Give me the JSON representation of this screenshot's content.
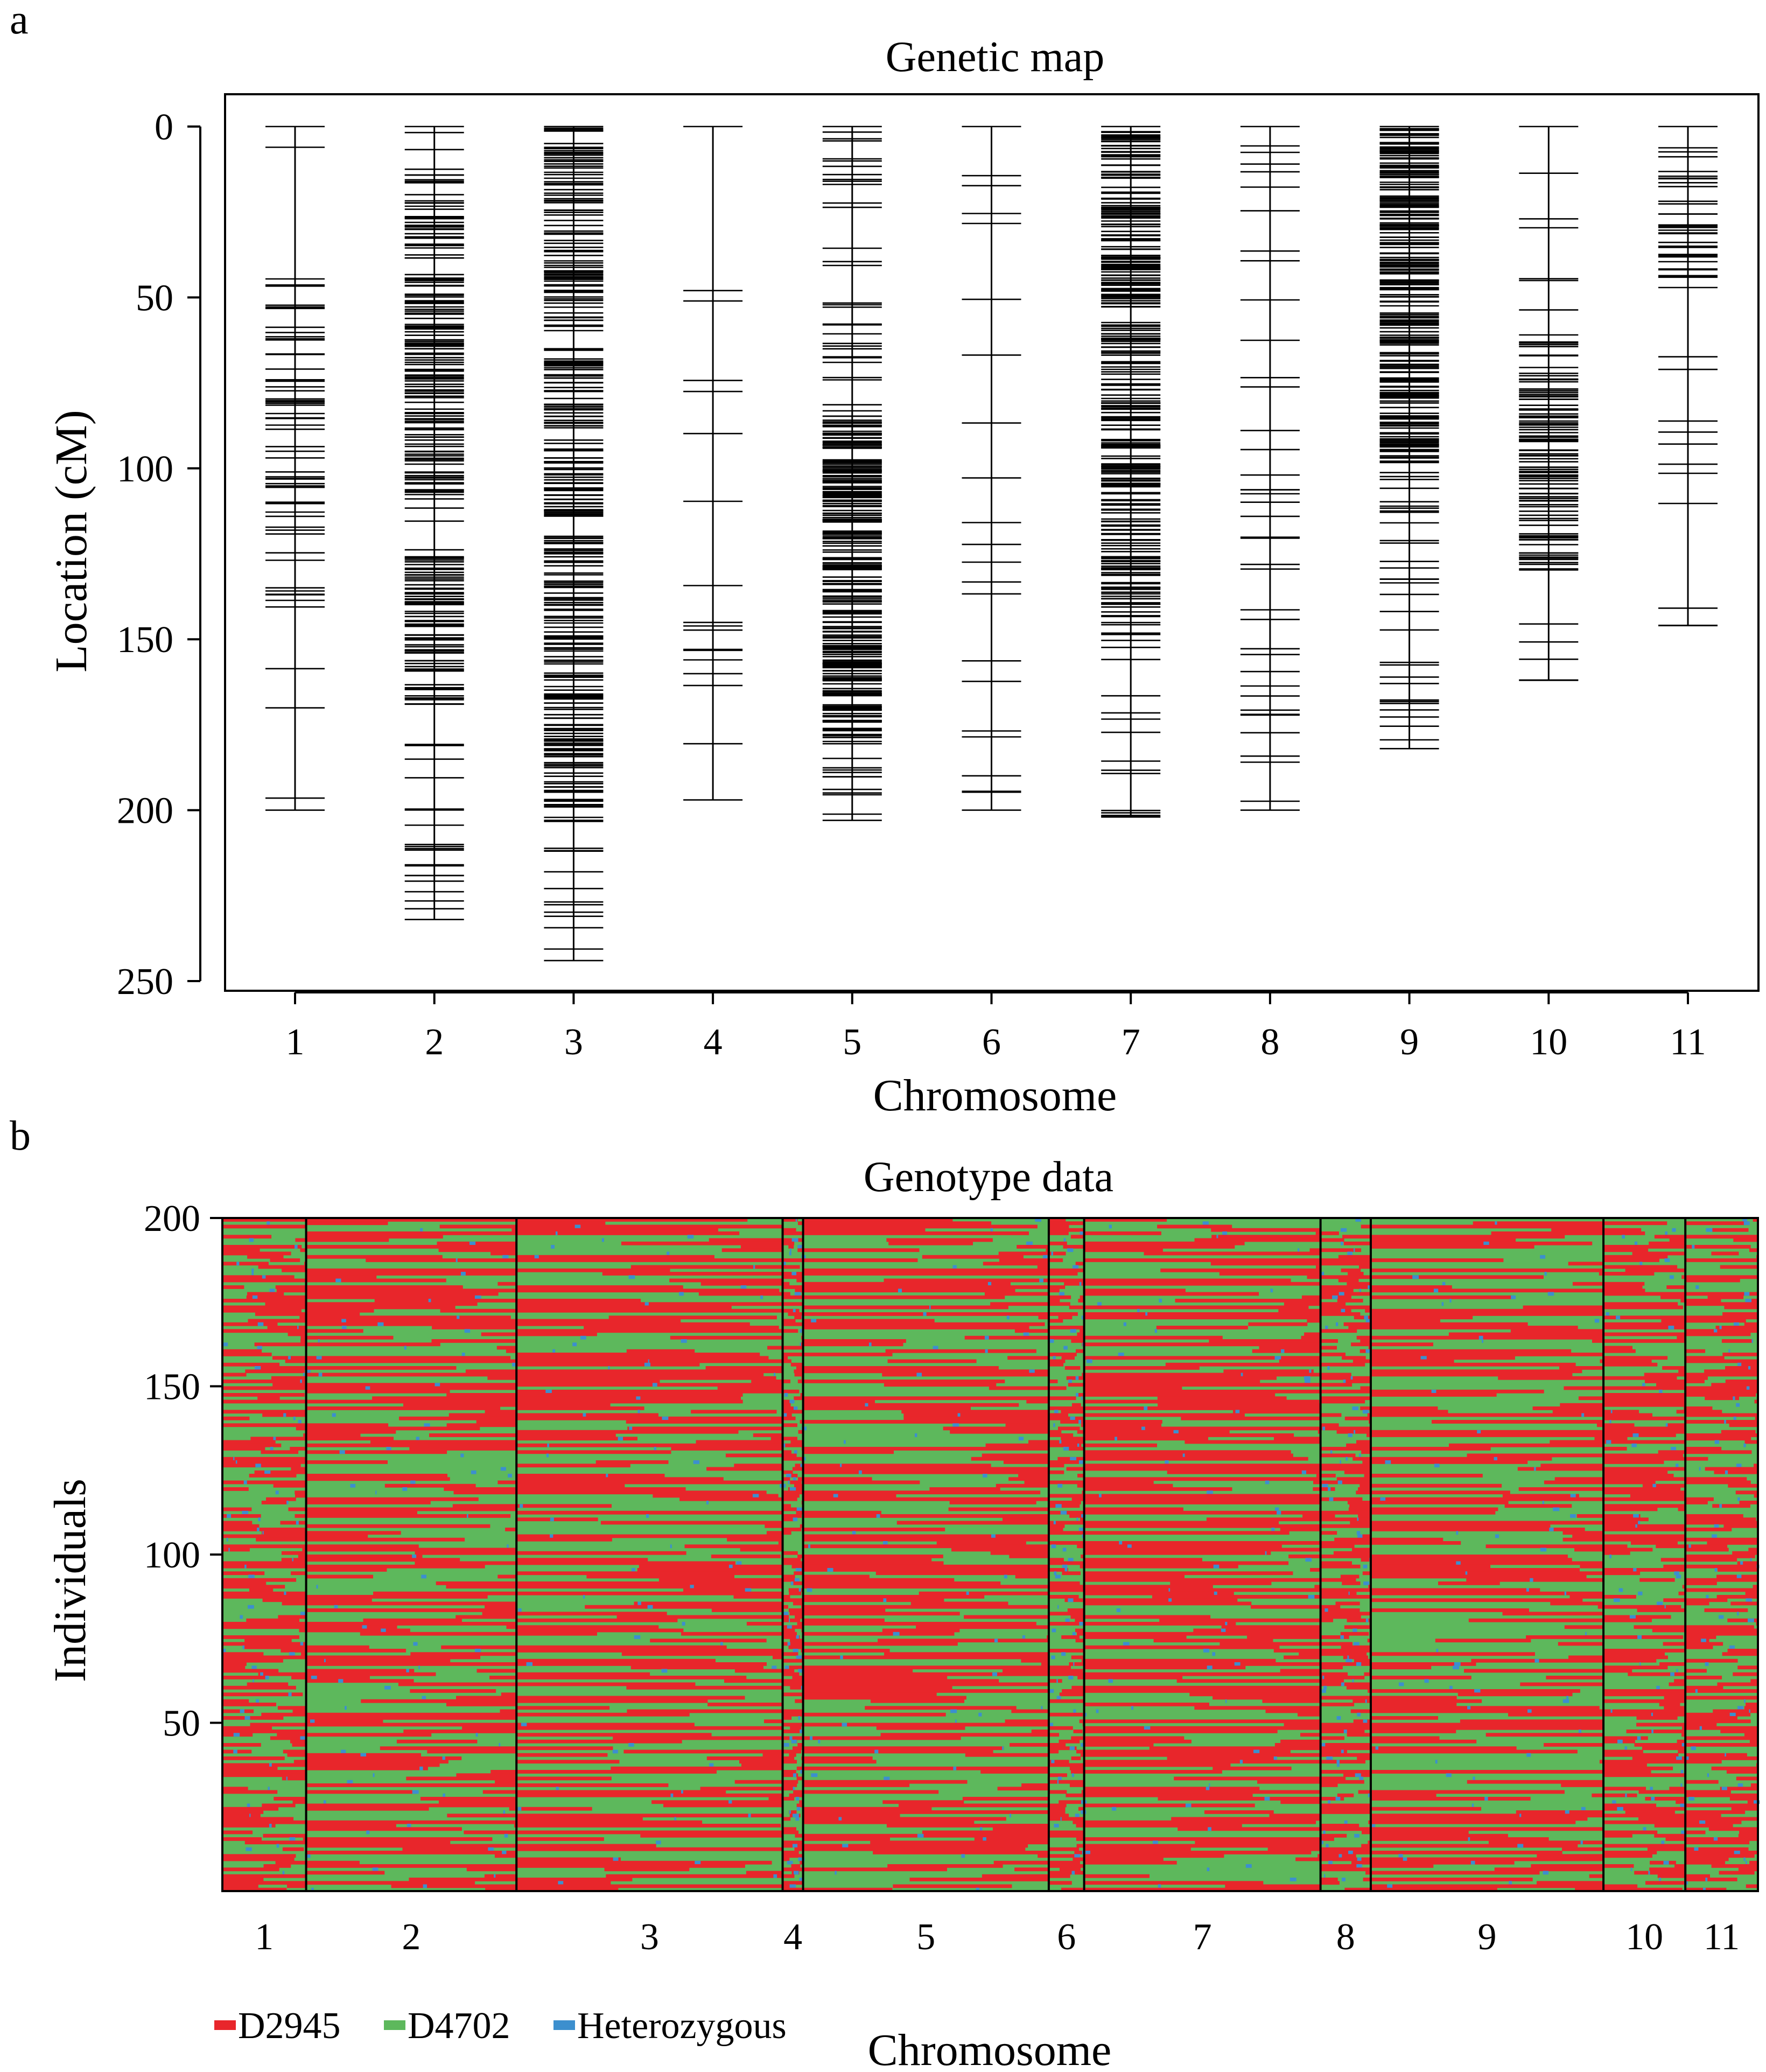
{
  "chart_data": [
    {
      "panel": "a",
      "type": "genetic-map",
      "title": "Genetic map",
      "xlabel": "Chromosome",
      "ylabel": "Location (cM)",
      "ylim": [
        0,
        255
      ],
      "y_reversed": true,
      "y_ticks": [
        0,
        50,
        100,
        150,
        200,
        250
      ],
      "categories": [
        "1",
        "2",
        "3",
        "4",
        "5",
        "6",
        "7",
        "8",
        "9",
        "10",
        "11"
      ],
      "lengths_cM": [
        200,
        232,
        244,
        197,
        203,
        200,
        202,
        200,
        182,
        162,
        146
      ],
      "dense_regions_cM": [
        [
          [
            45,
            140
          ]
        ],
        [
          [
            14,
            110
          ],
          [
            125,
            170
          ]
        ],
        [
          [
            0,
            200
          ]
        ],
        [],
        [
          [
            84,
            180
          ]
        ],
        [],
        [
          [
            0,
            140
          ]
        ],
        [],
        [
          [
            0,
            100
          ]
        ],
        [
          [
            60,
            130
          ]
        ],
        [
          [
            5,
            45
          ]
        ]
      ],
      "marker_counts_approx": [
        60,
        230,
        310,
        16,
        260,
        20,
        270,
        38,
        250,
        110,
        45
      ]
    },
    {
      "panel": "b",
      "type": "heatmap",
      "title": "Genotype data",
      "xlabel": "Chromosome",
      "ylabel": "Individuals",
      "ylim": [
        0,
        200
      ],
      "y_ticks": [
        50,
        100,
        150,
        200
      ],
      "categories": [
        "1",
        "2",
        "3",
        "4",
        "5",
        "6",
        "7",
        "8",
        "9",
        "10",
        "11"
      ],
      "marker_count_share": [
        0.045,
        0.113,
        0.143,
        0.011,
        0.132,
        0.019,
        0.127,
        0.027,
        0.125,
        0.044,
        0.039
      ],
      "legend": [
        {
          "label": "D2945",
          "color": "#e8262b"
        },
        {
          "label": "D4702",
          "color": "#5db85c"
        },
        {
          "label": "Heterozygous",
          "color": "#3c8fce"
        }
      ]
    }
  ],
  "panel_letters": [
    "a",
    "b"
  ]
}
